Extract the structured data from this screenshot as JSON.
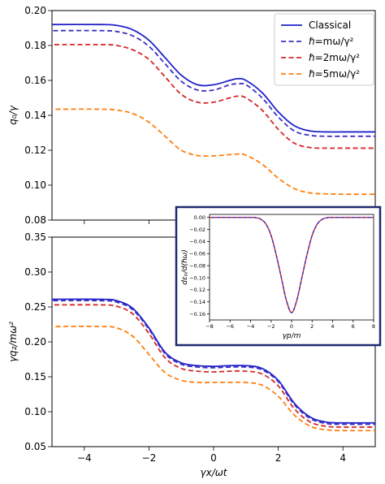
{
  "chart_data": [
    {
      "type": "line",
      "xlabel": "",
      "ylabel": "q₀/γ",
      "xlim": [
        -5,
        5
      ],
      "ylim": [
        0.08,
        0.2
      ],
      "xticks": [],
      "yticks": [
        "0.08",
        "0.10",
        "0.12",
        "0.14",
        "0.16",
        "0.18",
        "0.20"
      ],
      "legend": {
        "placement": "top-right",
        "entries": [
          "Classical",
          "ℏ=mω/γ²",
          "ℏ=2mω/γ²",
          "ℏ=5mω/γ²"
        ]
      },
      "series": [
        {
          "name": "Classical",
          "color": "#1f22c8",
          "dash": "solid",
          "x": [
            -5,
            -3.5,
            -3,
            -2.5,
            -2,
            -1.5,
            -1,
            -0.5,
            0,
            0.5,
            0.75,
            1,
            1.5,
            2,
            2.5,
            3,
            3.5,
            4,
            5
          ],
          "y": [
            0.192,
            0.192,
            0.1915,
            0.189,
            0.183,
            0.173,
            0.163,
            0.1575,
            0.1575,
            0.16,
            0.161,
            0.16,
            0.153,
            0.142,
            0.134,
            0.131,
            0.1305,
            0.1305,
            0.1305
          ]
        },
        {
          "name": "ℏ=mω/γ²",
          "color": "#3b2fc4",
          "dash": "dashed",
          "x": [
            -5,
            -3.5,
            -3,
            -2.5,
            -2,
            -1.5,
            -1,
            -0.5,
            0,
            0.5,
            0.75,
            1,
            1.5,
            2,
            2.5,
            3,
            3.5,
            4,
            5
          ],
          "y": [
            0.1885,
            0.1885,
            0.188,
            0.1855,
            0.1795,
            0.1695,
            0.1595,
            0.1545,
            0.1545,
            0.1575,
            0.158,
            0.1575,
            0.15,
            0.139,
            0.131,
            0.1285,
            0.128,
            0.128,
            0.128
          ]
        },
        {
          "name": "ℏ=2mω/γ²",
          "color": "#d62728",
          "dash": "dashed",
          "x": [
            -5,
            -3.5,
            -3,
            -2.5,
            -2,
            -1.5,
            -1,
            -0.5,
            0,
            0.5,
            0.75,
            1,
            1.5,
            2,
            2.5,
            3,
            3.5,
            4,
            5
          ],
          "y": [
            0.1805,
            0.1805,
            0.18,
            0.1775,
            0.172,
            0.162,
            0.152,
            0.1475,
            0.1475,
            0.15,
            0.151,
            0.15,
            0.143,
            0.132,
            0.124,
            0.1215,
            0.1212,
            0.1212,
            0.1212
          ]
        },
        {
          "name": "ℏ=5mω/γ²",
          "color": "#ff7f0e",
          "dash": "dashed",
          "x": [
            -5,
            -3.5,
            -3,
            -2.5,
            -2,
            -1.5,
            -1,
            -0.5,
            0,
            0.5,
            0.75,
            1,
            1.5,
            2,
            2.5,
            3,
            3.5,
            4,
            5
          ],
          "y": [
            0.1435,
            0.1435,
            0.143,
            0.141,
            0.136,
            0.128,
            0.12,
            0.117,
            0.1168,
            0.1175,
            0.1178,
            0.1172,
            0.112,
            0.104,
            0.098,
            0.0955,
            0.095,
            0.0948,
            0.0948
          ]
        }
      ]
    },
    {
      "type": "line",
      "xlabel": "γx/ωt",
      "ylabel": "γq₂/mω²",
      "xlim": [
        -5,
        5
      ],
      "ylim": [
        0.05,
        0.35
      ],
      "xticks": [
        "−4",
        "−2",
        "0",
        "2",
        "4"
      ],
      "yticks": [
        "0.05",
        "0.10",
        "0.15",
        "0.20",
        "0.25",
        "0.30",
        "0.35"
      ],
      "series": [
        {
          "name": "Classical",
          "color": "#1f22c8",
          "dash": "solid",
          "x": [
            -5,
            -3.5,
            -3,
            -2.5,
            -2,
            -1.5,
            -1,
            -0.5,
            0,
            0.5,
            1,
            1.5,
            2,
            2.5,
            3,
            3.5,
            4,
            5
          ],
          "y": [
            0.261,
            0.261,
            0.259,
            0.248,
            0.22,
            0.185,
            0.17,
            0.166,
            0.165,
            0.166,
            0.166,
            0.162,
            0.145,
            0.112,
            0.092,
            0.085,
            0.084,
            0.084
          ]
        },
        {
          "name": "ℏ=mω/γ²",
          "color": "#3b2fc4",
          "dash": "dashed",
          "x": [
            -5,
            -3.5,
            -3,
            -2.5,
            -2,
            -1.5,
            -1,
            -0.5,
            0,
            0.5,
            1,
            1.5,
            2,
            2.5,
            3,
            3.5,
            4,
            5
          ],
          "y": [
            0.259,
            0.259,
            0.257,
            0.246,
            0.218,
            0.183,
            0.168,
            0.164,
            0.163,
            0.164,
            0.164,
            0.16,
            0.143,
            0.11,
            0.09,
            0.083,
            0.082,
            0.082
          ]
        },
        {
          "name": "ℏ=2mω/γ²",
          "color": "#d62728",
          "dash": "dashed",
          "x": [
            -5,
            -3.5,
            -3,
            -2.5,
            -2,
            -1.5,
            -1,
            -0.5,
            0,
            0.5,
            1,
            1.5,
            2,
            2.5,
            3,
            3.5,
            4,
            5
          ],
          "y": [
            0.253,
            0.253,
            0.251,
            0.24,
            0.212,
            0.177,
            0.162,
            0.158,
            0.157,
            0.158,
            0.158,
            0.154,
            0.137,
            0.104,
            0.085,
            0.079,
            0.078,
            0.078
          ]
        },
        {
          "name": "ℏ=5mω/γ²",
          "color": "#ff7f0e",
          "dash": "dashed",
          "x": [
            -5,
            -3.5,
            -3,
            -2.5,
            -2,
            -1.5,
            -1,
            -0.5,
            0,
            0.5,
            1,
            1.5,
            2,
            2.5,
            3,
            3.5,
            4,
            5
          ],
          "y": [
            0.222,
            0.222,
            0.22,
            0.208,
            0.182,
            0.156,
            0.145,
            0.142,
            0.142,
            0.142,
            0.142,
            0.138,
            0.122,
            0.095,
            0.079,
            0.074,
            0.073,
            0.073
          ]
        }
      ]
    },
    {
      "type": "line",
      "xlabel": "γp/m",
      "ylabel": "dεₚ/d(ℏω)",
      "xlim": [
        -8,
        8
      ],
      "ylim": [
        -0.17,
        0.005
      ],
      "xticks": [
        "−8",
        "−6",
        "−4",
        "−2",
        "0",
        "2",
        "4",
        "6",
        "8"
      ],
      "yticks": [
        "0.00",
        "−0.02",
        "−0.04",
        "−0.06",
        "−0.08",
        "−0.10",
        "−0.12",
        "−0.14",
        "−0.16"
      ],
      "series": [
        {
          "name": "ℏ=2mω/γ²",
          "color": "#d62728",
          "dash": "solid",
          "x": [
            -8,
            -4,
            -3.5,
            -3,
            -2.5,
            -2,
            -1.5,
            -1,
            -0.5,
            0,
            0.5,
            1,
            1.5,
            2,
            2.5,
            3,
            3.5,
            4,
            8
          ],
          "y": [
            0,
            0,
            -0.0005,
            -0.003,
            -0.011,
            -0.03,
            -0.062,
            -0.1,
            -0.138,
            -0.158,
            -0.138,
            -0.1,
            -0.062,
            -0.03,
            -0.011,
            -0.003,
            -0.0005,
            0,
            0
          ]
        },
        {
          "name": "ℏ=mω/γ²",
          "color": "#3b2fc4",
          "dash": "dashed",
          "x": [
            -8,
            -4,
            -3.5,
            -3,
            -2.5,
            -2,
            -1.5,
            -1,
            -0.5,
            0,
            0.5,
            1,
            1.5,
            2,
            2.5,
            3,
            3.5,
            4,
            8
          ],
          "y": [
            0,
            0,
            -0.0005,
            -0.003,
            -0.011,
            -0.03,
            -0.062,
            -0.1,
            -0.138,
            -0.158,
            -0.138,
            -0.1,
            -0.062,
            -0.03,
            -0.011,
            -0.003,
            -0.0005,
            0,
            0
          ]
        }
      ]
    }
  ]
}
